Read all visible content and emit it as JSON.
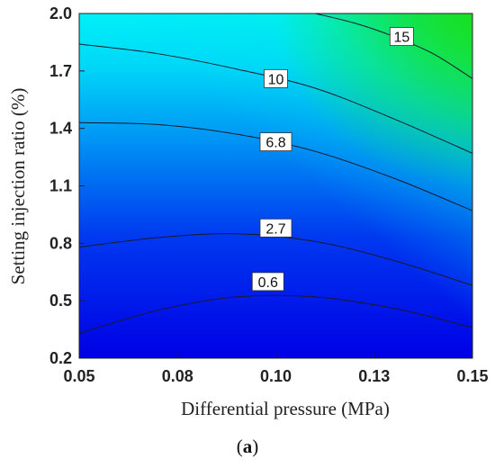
{
  "chart_data": {
    "type": "heatmap",
    "subtype": "contour",
    "title": "",
    "xlabel": "Differential pressure (MPa)",
    "ylabel": "Setting injection ratio (%)",
    "xlim": [
      0.05,
      0.15
    ],
    "ylim": [
      0.2,
      2.0
    ],
    "x_ticks": [
      "0.05",
      "0.08",
      "0.10",
      "0.13",
      "0.15"
    ],
    "y_ticks": [
      "0.2",
      "0.5",
      "0.8",
      "1.1",
      "1.4",
      "1.7",
      "2.0"
    ],
    "colormap": [
      "#0000e6",
      "#0060f0",
      "#00c8f8",
      "#00f8f0",
      "#10e040"
    ],
    "contours": [
      {
        "level": "0.6",
        "points": [
          [
            0.05,
            0.33
          ],
          [
            0.07,
            0.45
          ],
          [
            0.09,
            0.52
          ],
          [
            0.11,
            0.52
          ],
          [
            0.13,
            0.46
          ],
          [
            0.15,
            0.36
          ]
        ]
      },
      {
        "level": "2.7",
        "points": [
          [
            0.05,
            0.78
          ],
          [
            0.07,
            0.83
          ],
          [
            0.09,
            0.85
          ],
          [
            0.11,
            0.81
          ],
          [
            0.13,
            0.71
          ],
          [
            0.15,
            0.58
          ]
        ]
      },
      {
        "level": "6.8",
        "points": [
          [
            0.05,
            1.43
          ],
          [
            0.07,
            1.42
          ],
          [
            0.09,
            1.37
          ],
          [
            0.11,
            1.28
          ],
          [
            0.13,
            1.14
          ],
          [
            0.15,
            0.97
          ]
        ]
      },
      {
        "level": "10",
        "points": [
          [
            0.05,
            1.84
          ],
          [
            0.07,
            1.79
          ],
          [
            0.09,
            1.71
          ],
          [
            0.11,
            1.61
          ],
          [
            0.13,
            1.45
          ],
          [
            0.15,
            1.27
          ]
        ]
      },
      {
        "level": "15",
        "points": [
          [
            0.11,
            2.0
          ],
          [
            0.12,
            1.95
          ],
          [
            0.13,
            1.88
          ],
          [
            0.14,
            1.79
          ],
          [
            0.15,
            1.66
          ]
        ]
      }
    ],
    "contour_labels": [
      {
        "text": "0.6",
        "x": 0.098,
        "y": 0.6
      },
      {
        "text": "2.7",
        "x": 0.1,
        "y": 0.88
      },
      {
        "text": "6.8",
        "x": 0.1,
        "y": 1.33
      },
      {
        "text": "10",
        "x": 0.1,
        "y": 1.66
      },
      {
        "text": "15",
        "x": 0.132,
        "y": 1.88
      }
    ]
  },
  "panel_label": "a"
}
